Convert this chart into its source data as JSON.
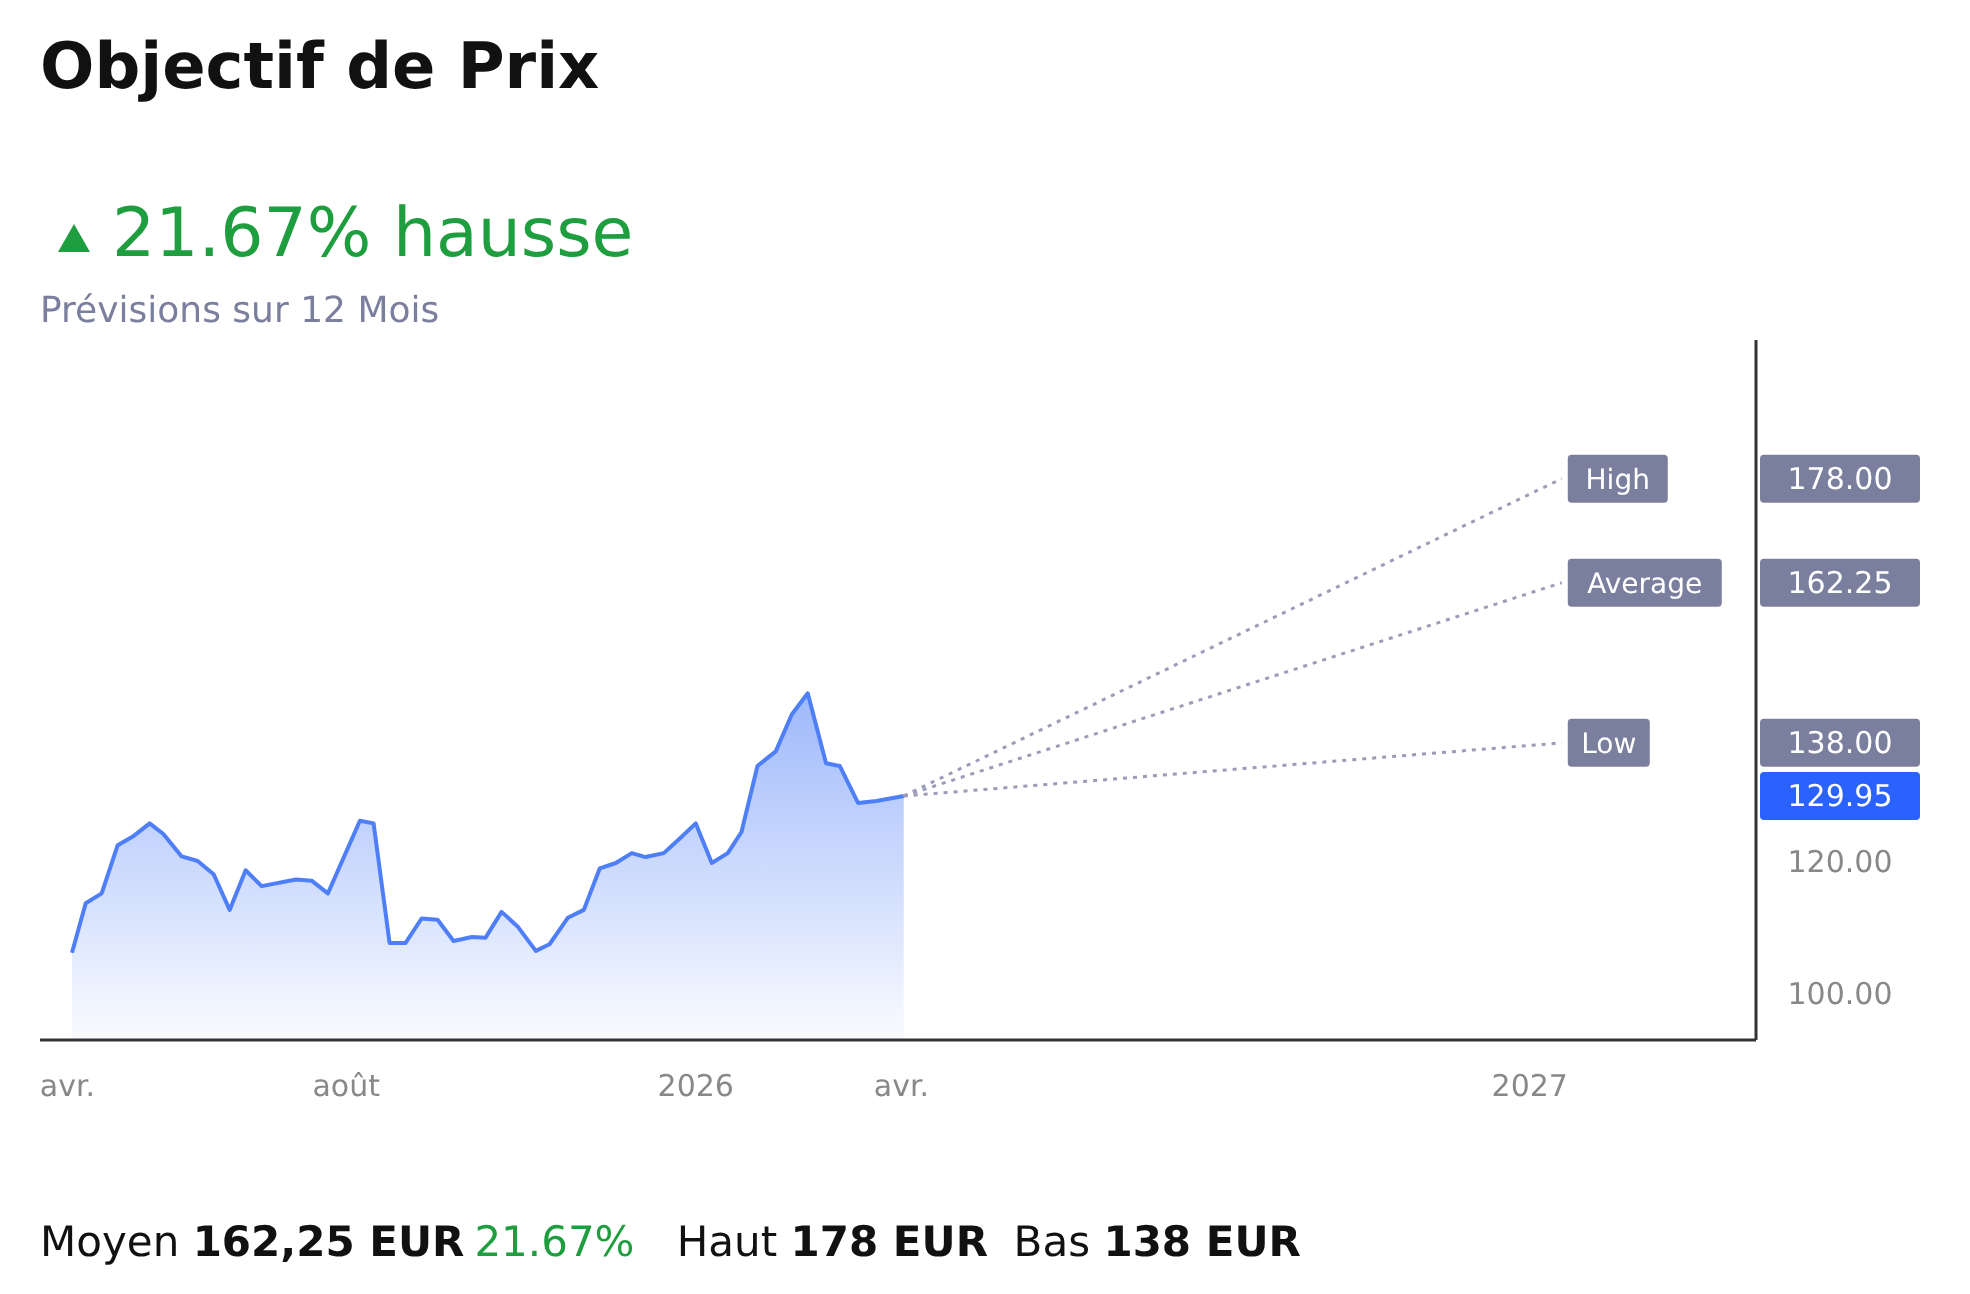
{
  "chart_data": {
    "type": "area",
    "title": "Objectif de Prix",
    "subtitle": "21.67% hausse",
    "annotations": [
      "Prévisions sur 12 Mois",
      "Moyen 162,25 EUR",
      "21.67%",
      "Haut 178 EUR",
      "Bas 138 EUR"
    ],
    "xlim": [
      "2025-03-20",
      "2027-04-10"
    ],
    "xticks": [
      {
        "value": "2025-04-01",
        "label": "avr."
      },
      {
        "value": "2025-08-01",
        "label": "août"
      },
      {
        "value": "2026-01-01",
        "label": "2026"
      },
      {
        "value": "2026-04-01",
        "label": "avr."
      },
      {
        "value": "2027-01-01",
        "label": "2027"
      }
    ],
    "ylim": [
      93,
      199
    ],
    "yticks": [
      {
        "value": 100,
        "label": "100.00"
      },
      {
        "value": 120,
        "label": "120.00"
      },
      {
        "value": 129.95,
        "label": "129.95"
      },
      {
        "value": 138,
        "label": "138.00"
      },
      {
        "value": 162.25,
        "label": "162.25"
      },
      {
        "value": 178,
        "label": "178.00"
      }
    ],
    "grid": false,
    "series": [
      {
        "color": "#4f7ff7",
        "x": [
          "2025-04-03",
          "2025-04-09",
          "2025-04-16",
          "2025-04-23",
          "2025-04-30",
          "2025-05-07",
          "2025-05-13",
          "2025-05-21",
          "2025-05-28",
          "2025-06-04",
          "2025-06-11",
          "2025-06-18",
          "2025-06-25",
          "2025-07-10",
          "2025-07-17",
          "2025-07-24",
          "2025-08-07",
          "2025-08-13",
          "2025-08-20",
          "2025-08-27",
          "2025-09-03",
          "2025-09-10",
          "2025-09-17",
          "2025-09-25",
          "2025-10-01",
          "2025-10-08",
          "2025-10-15",
          "2025-10-23",
          "2025-10-29",
          "2025-11-06",
          "2025-11-13",
          "2025-11-20",
          "2025-11-27",
          "2025-12-04",
          "2025-12-10",
          "2025-12-18",
          "2025-12-25",
          "2026-01-01",
          "2026-01-08",
          "2026-01-15",
          "2026-01-21",
          "2026-01-28",
          "2026-02-05",
          "2026-02-12",
          "2026-02-19",
          "2026-02-27",
          "2026-03-05",
          "2026-03-13",
          "2026-03-21",
          "2026-04-02"
        ],
        "values": [
          106.2,
          113.7,
          115.2,
          122.5,
          123.9,
          125.8,
          124.2,
          120.8,
          120.1,
          118.1,
          112.7,
          118.7,
          116.3,
          117.3,
          117.1,
          115.2,
          126.2,
          125.8,
          107.7,
          107.7,
          111.4,
          111.2,
          108.0,
          108.6,
          108.5,
          112.4,
          110.2,
          106.5,
          107.5,
          111.5,
          112.7,
          119.0,
          119.8,
          121.3,
          120.7,
          121.3,
          123.5,
          125.8,
          119.8,
          121.3,
          124.5,
          134.5,
          136.7,
          142.3,
          145.5,
          134.9,
          134.5,
          128.9,
          129.2,
          129.95
        ]
      },
      {
        "type": "line",
        "name": "High",
        "color": "#9a9cb8",
        "line_style": "dotted",
        "x": [
          "2026-04-02",
          "2027-01-15"
        ],
        "values": [
          129.95,
          178
        ]
      },
      {
        "type": "line",
        "name": "Average",
        "color": "#9a9cb8",
        "line_style": "dotted",
        "x": [
          "2026-04-02",
          "2027-01-15"
        ],
        "values": [
          129.95,
          162.25
        ]
      },
      {
        "type": "line",
        "name": "Low",
        "color": "#9a9cb8",
        "line_style": "dotted",
        "x": [
          "2026-04-02",
          "2027-01-15"
        ],
        "values": [
          129.95,
          138
        ]
      }
    ]
  }
}
